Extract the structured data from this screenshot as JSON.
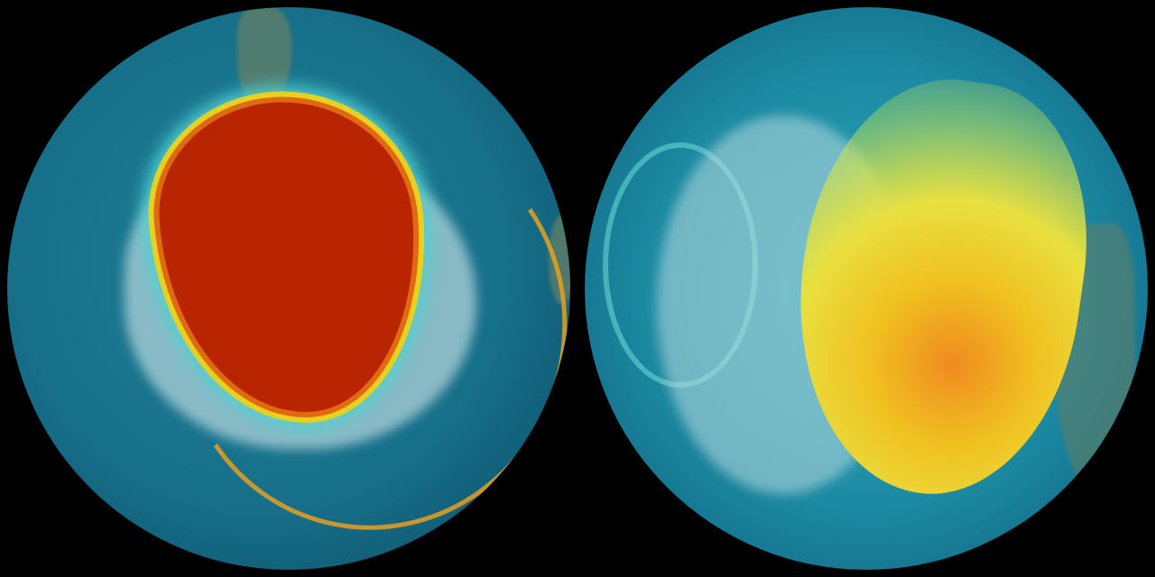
{
  "image": {
    "description_type": "two-globe ozone visualization",
    "panels": [
      {
        "name": "left-globe",
        "colors": {
          "ocean": "#17708a",
          "hole": "#b82500",
          "edge": "#e8d020",
          "ice": "#b9d9df"
        }
      },
      {
        "name": "right-globe",
        "colors": {
          "ocean": "#1c8aa2",
          "high": "#f08a20",
          "mid": "#e8e040",
          "ice": "#b9d9df"
        }
      }
    ]
  }
}
